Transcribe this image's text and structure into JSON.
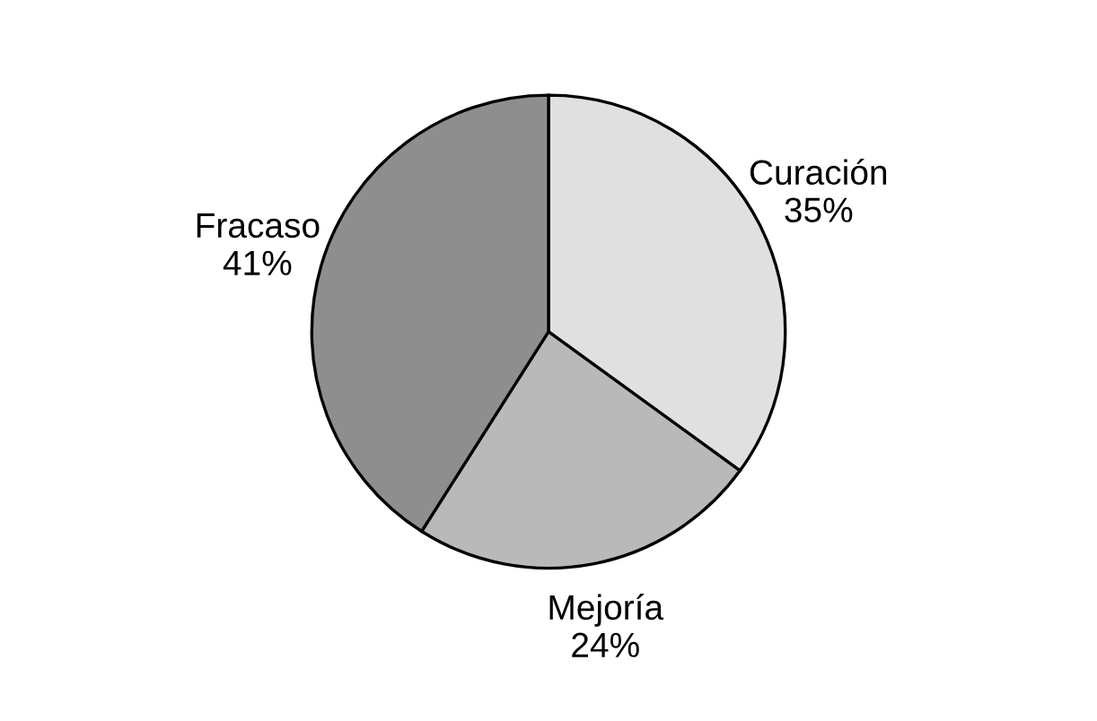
{
  "chart_data": {
    "type": "pie",
    "categories": [
      "Curación",
      "Mejoría",
      "Fracaso"
    ],
    "values": [
      35,
      24,
      41
    ],
    "value_labels": [
      "35%",
      "24%",
      "41%"
    ],
    "colors": [
      "#e0e0e0",
      "#b9b9b9",
      "#8e8e8e"
    ]
  }
}
